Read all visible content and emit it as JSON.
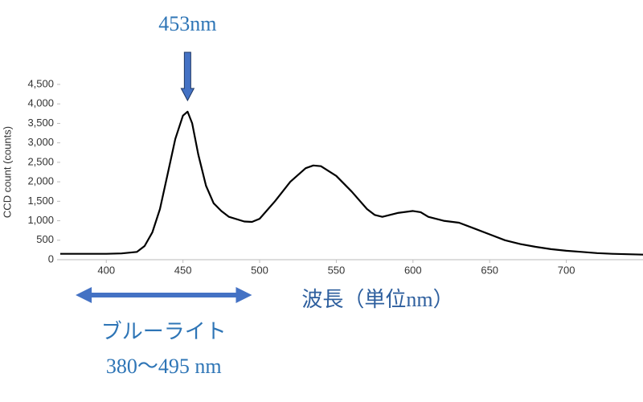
{
  "chart_data": {
    "type": "line",
    "y_label": "CCD count (counts)",
    "x_label": "波長（単位nm）",
    "x": [
      370,
      400,
      410,
      420,
      425,
      430,
      435,
      440,
      445,
      450,
      453,
      456,
      460,
      465,
      470,
      475,
      480,
      490,
      495,
      500,
      510,
      520,
      530,
      535,
      540,
      550,
      560,
      570,
      575,
      580,
      590,
      600,
      605,
      610,
      620,
      630,
      640,
      650,
      660,
      670,
      680,
      690,
      700,
      710,
      720,
      730,
      740,
      750
    ],
    "series": [
      {
        "color": "#000000",
        "values": [
          150,
          150,
          160,
          200,
          350,
          700,
          1300,
          2200,
          3100,
          3700,
          3800,
          3500,
          2700,
          1900,
          1450,
          1250,
          1100,
          980,
          970,
          1050,
          1500,
          2000,
          2350,
          2420,
          2400,
          2150,
          1750,
          1300,
          1150,
          1100,
          1200,
          1250,
          1220,
          1100,
          1000,
          950,
          800,
          650,
          500,
          400,
          330,
          270,
          230,
          200,
          170,
          150,
          140,
          130
        ]
      }
    ],
    "xlim": [
      370,
      750
    ],
    "ylim": [
      0,
      4500
    ],
    "xticks": [
      400,
      450,
      500,
      550,
      600,
      650,
      700
    ],
    "yticks": [
      0,
      500,
      {
        "value": 1000,
        "label": "1,000"
      },
      {
        "value": 1500,
        "label": "1,500"
      },
      {
        "value": 2000,
        "label": "2,000"
      },
      {
        "value": 2500,
        "label": "2,500"
      },
      {
        "value": 3000,
        "label": "3,000"
      },
      {
        "value": 3500,
        "label": "3,500"
      },
      {
        "value": 4000,
        "label": "4,000"
      },
      {
        "value": 4500,
        "label": "4,500"
      }
    ],
    "peak_annotation": {
      "text": "453nm",
      "x": 453,
      "color": "#2e75b6"
    },
    "range_annotation": {
      "label": "ブルーライト",
      "range_label": "380〜495 nm",
      "start": 380,
      "end": 495,
      "color": "#4472c4"
    }
  }
}
